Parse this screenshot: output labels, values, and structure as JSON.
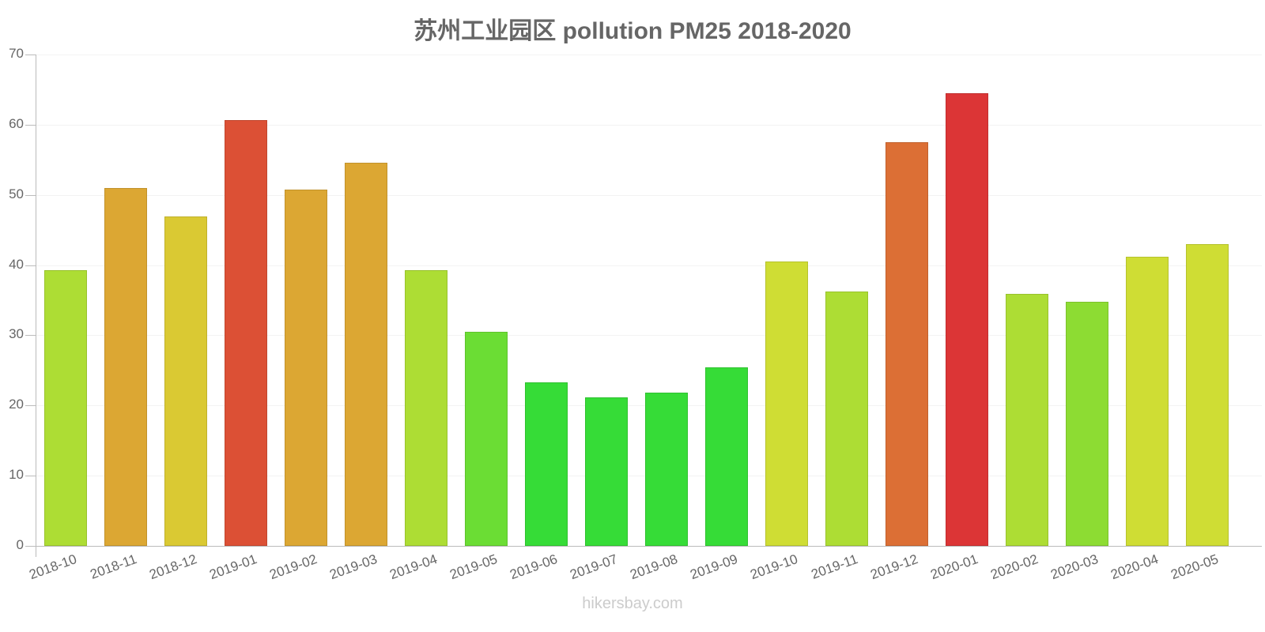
{
  "title": "苏州工业园区 pollution PM25 2018-2020",
  "watermark": "hikersbay.com",
  "y_ticks": [
    "0",
    "10",
    "20",
    "30",
    "40",
    "50",
    "60",
    "70"
  ],
  "chart_data": {
    "type": "bar",
    "title": "苏州工业园区 pollution PM25 2018-2020",
    "xlabel": "",
    "ylabel": "",
    "ylim": [
      0,
      70
    ],
    "yticks": [
      0,
      10,
      20,
      30,
      40,
      50,
      60,
      70
    ],
    "grid": true,
    "legend": null,
    "categories": [
      "2018-10",
      "2018-11",
      "2018-12",
      "2019-01",
      "2019-02",
      "2019-03",
      "2019-04",
      "2019-05",
      "2019-06",
      "2019-07",
      "2019-08",
      "2019-09",
      "2019-10",
      "2019-11",
      "2019-12",
      "2020-01",
      "2020-02",
      "2020-03",
      "2020-04",
      "2020-05"
    ],
    "values": [
      39.3,
      51.0,
      46.9,
      60.7,
      50.8,
      54.6,
      39.3,
      30.5,
      23.3,
      21.2,
      21.8,
      25.4,
      40.5,
      36.2,
      57.5,
      64.5,
      35.9,
      34.8,
      41.2,
      43.0
    ],
    "colors": [
      "#addd34",
      "#dca733",
      "#dac933",
      "#dc5035",
      "#dca733",
      "#dca733",
      "#addd34",
      "#6bdd34",
      "#36dc37",
      "#36dc37",
      "#36dc37",
      "#36dc37",
      "#cfdd34",
      "#addd34",
      "#dc6f35",
      "#dc3536",
      "#addd34",
      "#8ddc33",
      "#cfdd34",
      "#cfdd34"
    ]
  }
}
